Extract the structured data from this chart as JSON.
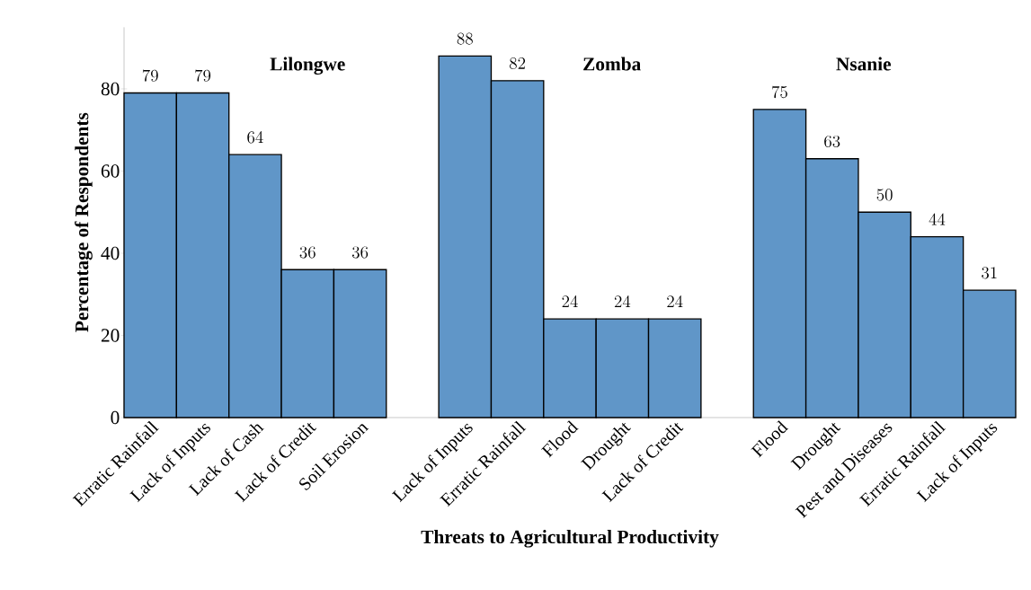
{
  "chart_data": {
    "type": "bar",
    "xlabel": "Threats to Agricultural Productivity",
    "ylabel": "Percentage of Respondents",
    "categories": [
      "Erratic Rainfall",
      "Lack of Inputs",
      "Lack of Cash",
      "Lack of Credit",
      "Soil Erosion",
      null,
      "Lack of Inputs",
      "Erratic Rainfall",
      "Flood",
      "Drought",
      "Lack of Credit",
      null,
      "Flood",
      "Drought",
      "Pest and Diseases",
      "Erratic Rainfall",
      "Lack of Inputs"
    ],
    "values": [
      79,
      79,
      64,
      36,
      36,
      null,
      88,
      82,
      24,
      24,
      24,
      null,
      75,
      63,
      50,
      44,
      31
    ],
    "color": "#6096c8",
    "ylim": [
      0,
      95
    ],
    "yticks": [
      0,
      20,
      40,
      60,
      80
    ],
    "data_labels": true,
    "annotations": [
      "Lilongwe",
      "Zomba",
      "Nsanie"
    ]
  }
}
